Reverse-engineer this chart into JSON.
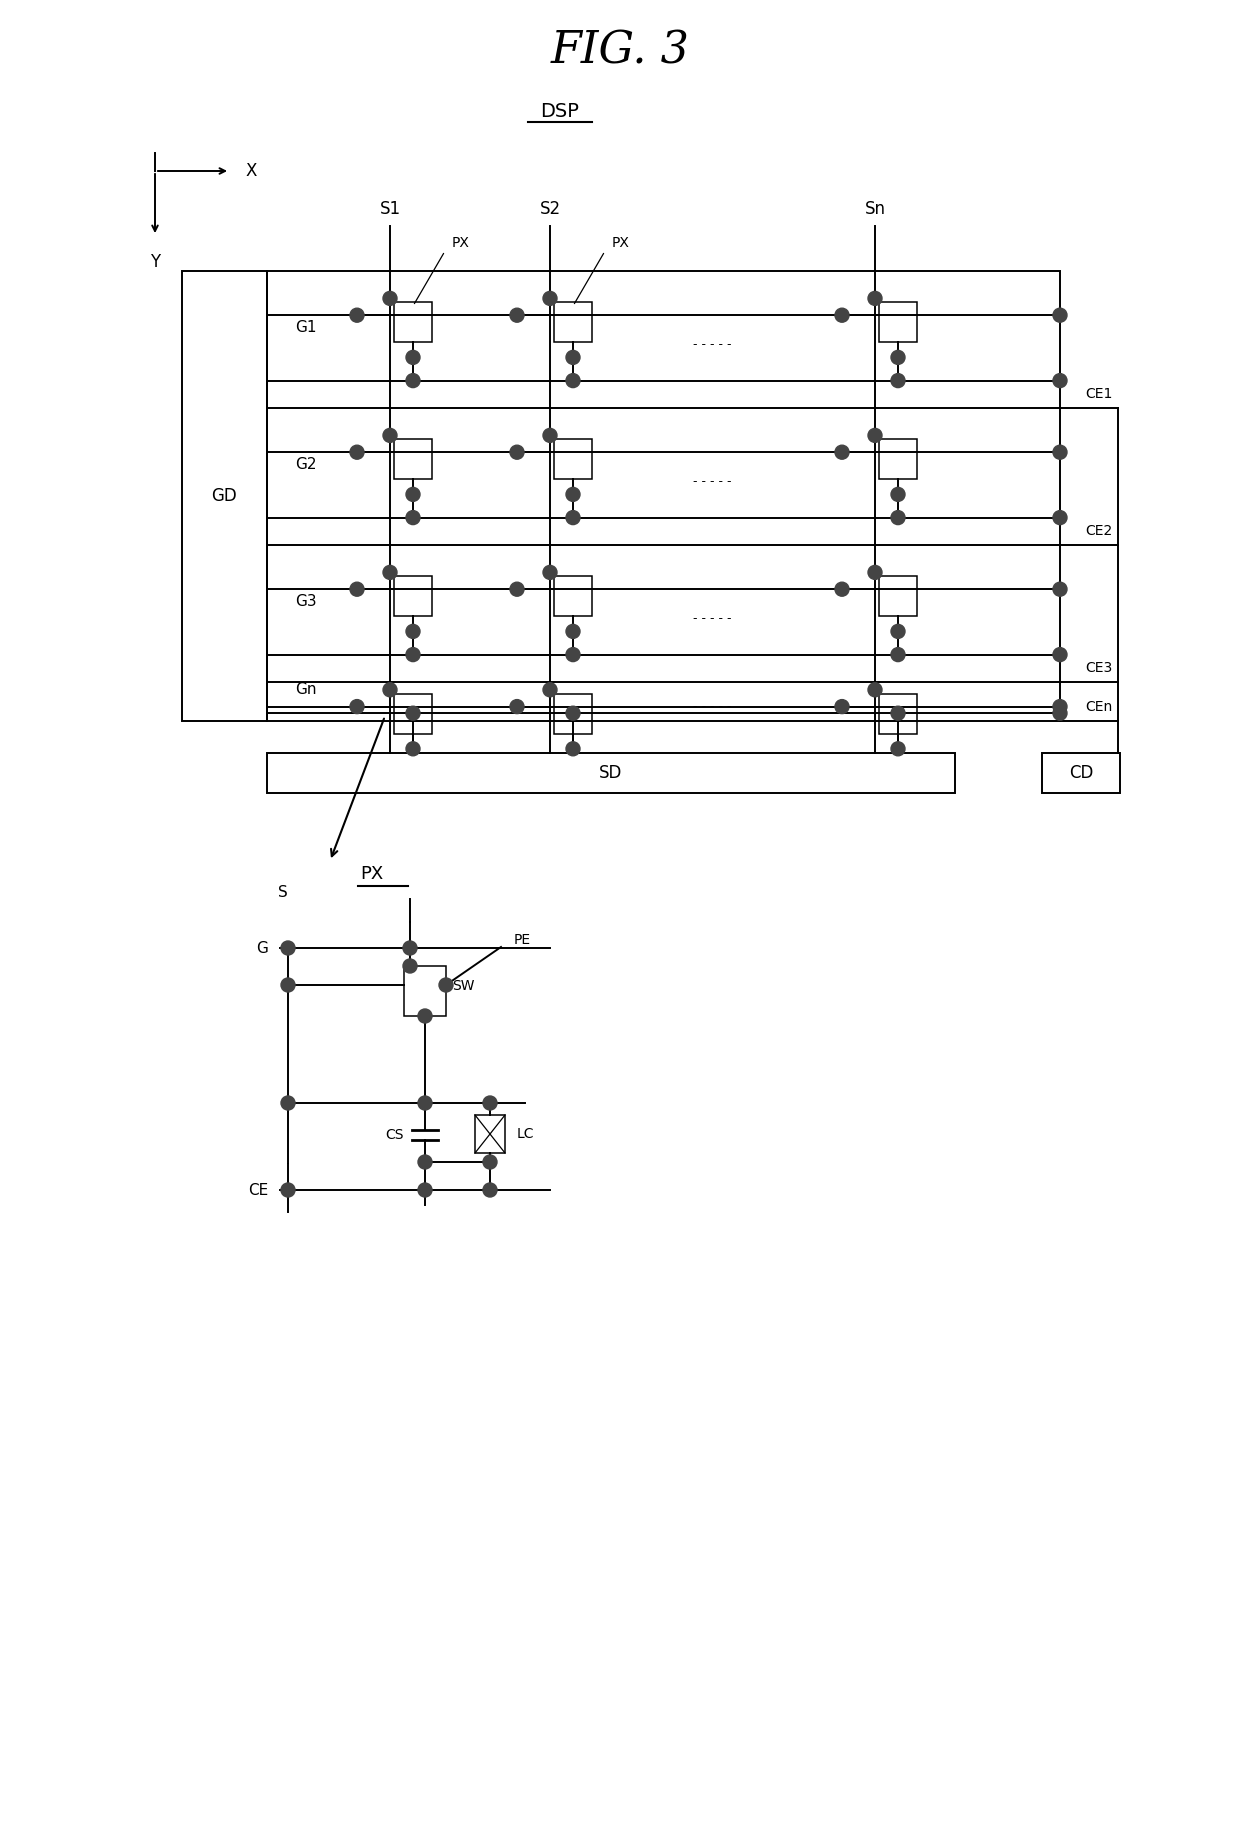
{
  "title": "FIG. 3",
  "subtitle": "DSP",
  "bg_color": "#ffffff",
  "line_color": "#000000",
  "dot_color": "#444444",
  "fig_width": 12.4,
  "fig_height": 18.26,
  "row_labels": [
    "G1",
    "G2",
    "G3",
    "Gn"
  ],
  "col_labels": [
    "S1",
    "S2",
    "Sn"
  ],
  "ce_labels": [
    "CE1",
    "CE2",
    "CE3",
    "CEn"
  ],
  "gd_label": "GD",
  "sd_label": "SD",
  "cd_label": "CD",
  "px_label": "PX",
  "note_dots": ". - - - - .",
  "title_fs": 32,
  "subtitle_fs": 14,
  "label_fs": 12,
  "small_fs": 10,
  "dot_r": 0.07,
  "lw_main": 1.4,
  "lw_thin": 1.1,
  "lw_thick": 2.0
}
